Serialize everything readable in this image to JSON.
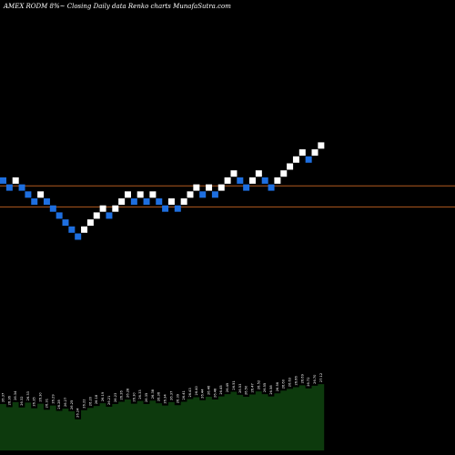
{
  "header": {
    "title": "AMEX  RODM 8%~  Closing Daily data  Renko  charts MunafaSutra.com"
  },
  "colors": {
    "background": "#000000",
    "up_brick": "#ffffff",
    "down_brick": "#1e6fe0",
    "level_line": "#b35a1f",
    "volume_fill": "#0d3a0d",
    "label_color": "#ffffff"
  },
  "chart_data": {
    "type": "renko",
    "bricks": [
      {
        "dir": "down",
        "level": 8
      },
      {
        "dir": "down",
        "level": 7
      },
      {
        "dir": "up",
        "level": 8
      },
      {
        "dir": "down",
        "level": 7
      },
      {
        "dir": "down",
        "level": 6
      },
      {
        "dir": "down",
        "level": 5
      },
      {
        "dir": "up",
        "level": 6
      },
      {
        "dir": "down",
        "level": 5
      },
      {
        "dir": "down",
        "level": 4
      },
      {
        "dir": "down",
        "level": 3
      },
      {
        "dir": "down",
        "level": 2
      },
      {
        "dir": "down",
        "level": 1
      },
      {
        "dir": "down",
        "level": 0
      },
      {
        "dir": "up",
        "level": 1
      },
      {
        "dir": "up",
        "level": 2
      },
      {
        "dir": "up",
        "level": 3
      },
      {
        "dir": "up",
        "level": 4
      },
      {
        "dir": "down",
        "level": 3
      },
      {
        "dir": "up",
        "level": 4
      },
      {
        "dir": "up",
        "level": 5
      },
      {
        "dir": "up",
        "level": 6
      },
      {
        "dir": "down",
        "level": 5
      },
      {
        "dir": "up",
        "level": 6
      },
      {
        "dir": "down",
        "level": 5
      },
      {
        "dir": "up",
        "level": 6
      },
      {
        "dir": "down",
        "level": 5
      },
      {
        "dir": "down",
        "level": 4
      },
      {
        "dir": "up",
        "level": 5
      },
      {
        "dir": "down",
        "level": 4
      },
      {
        "dir": "up",
        "level": 5
      },
      {
        "dir": "up",
        "level": 6
      },
      {
        "dir": "up",
        "level": 7
      },
      {
        "dir": "down",
        "level": 6
      },
      {
        "dir": "up",
        "level": 7
      },
      {
        "dir": "down",
        "level": 6
      },
      {
        "dir": "up",
        "level": 7
      },
      {
        "dir": "up",
        "level": 8
      },
      {
        "dir": "up",
        "level": 9
      },
      {
        "dir": "down",
        "level": 8
      },
      {
        "dir": "down",
        "level": 7
      },
      {
        "dir": "up",
        "level": 8
      },
      {
        "dir": "up",
        "level": 9
      },
      {
        "dir": "down",
        "level": 8
      },
      {
        "dir": "down",
        "level": 7
      },
      {
        "dir": "up",
        "level": 8
      },
      {
        "dir": "up",
        "level": 9
      },
      {
        "dir": "up",
        "level": 10
      },
      {
        "dir": "up",
        "level": 11
      },
      {
        "dir": "up",
        "level": 12
      },
      {
        "dir": "down",
        "level": 11
      },
      {
        "dir": "up",
        "level": 12
      },
      {
        "dir": "up",
        "level": 13
      }
    ],
    "level_lines": [
      {
        "level": 7
      },
      {
        "level": 4
      }
    ],
    "volume_panel": {
      "values": [
        5,
        4.2,
        5.5,
        4.1,
        5.4,
        3.9,
        5.1,
        3.5,
        4.6,
        3.2,
        3.8,
        3.1,
        1.0,
        3.4,
        4.0,
        4.5,
        5.2,
        4.3,
        5.0,
        5.6,
        6.2,
        5.1,
        5.8,
        5.0,
        5.9,
        5.2,
        4.6,
        5.5,
        4.7,
        5.6,
        6.3,
        6.8,
        6.0,
        6.9,
        6.2,
        7.0,
        7.6,
        8.2,
        7.4,
        6.9,
        7.5,
        8.3,
        7.6,
        7.0,
        7.8,
        8.5,
        9.0,
        9.4,
        9.9,
        9.1,
        9.8,
        10.2
      ]
    },
    "price_labels": [
      "26.37",
      "26.36",
      "26.34",
      "26.32",
      "26.33",
      "26.35",
      "26.30",
      "26.31",
      "26.29",
      "26.28",
      "26.27",
      "26.25",
      "26.24",
      "26.22",
      "26.20",
      "26.18",
      "26.19",
      "26.21",
      "26.23",
      "26.26",
      "26.28",
      "26.30",
      "26.33",
      "26.35",
      "26.38",
      "26.36",
      "26.34",
      "26.37",
      "26.39",
      "26.41",
      "26.43",
      "26.40",
      "26.44",
      "26.46",
      "26.48",
      "26.45",
      "26.49",
      "26.51",
      "26.53",
      "26.50",
      "26.47",
      "26.52",
      "26.55",
      "26.58",
      "26.56",
      "26.60",
      "26.63",
      "26.66",
      "26.69",
      "26.72",
      "26.70",
      "27.12"
    ]
  }
}
